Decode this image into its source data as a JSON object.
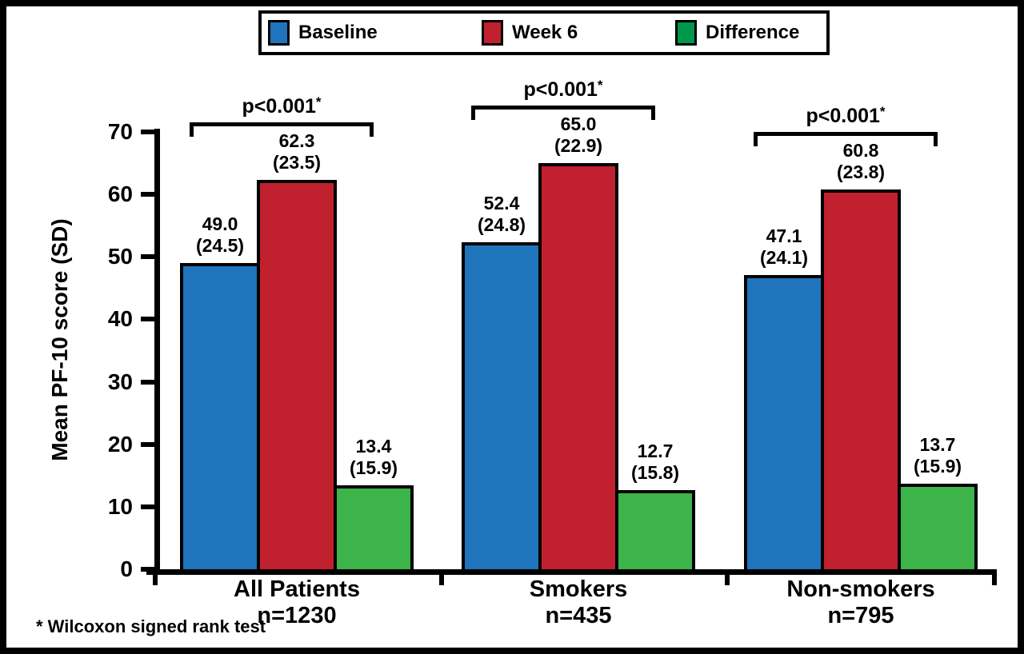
{
  "legend": {
    "items": [
      {
        "label": "Baseline",
        "color": "#1F74BC",
        "icon": "blue-square-swatch"
      },
      {
        "label": "Week 6",
        "color": "#C1202F",
        "icon": "red-square-swatch"
      },
      {
        "label": "Difference",
        "color": "#00984A",
        "icon": "green-square-swatch"
      }
    ]
  },
  "chart_data": {
    "type": "bar",
    "title": "",
    "xlabel": "",
    "ylabel": "Mean PF-10 score (SD)",
    "ylim": [
      0,
      70
    ],
    "yticks": [
      0,
      10,
      20,
      30,
      40,
      50,
      60,
      70
    ],
    "grid": false,
    "legend_position": "top-center",
    "series": [
      {
        "name": "Baseline",
        "color": "#1F74BC"
      },
      {
        "name": "Week 6",
        "color": "#C1202F"
      },
      {
        "name": "Difference",
        "color": "#3CB44A"
      }
    ],
    "groups": [
      {
        "label": "All Patients",
        "n_label": "n=1230",
        "p_label": "p<0.001",
        "p_asterisk": "*",
        "bars": [
          {
            "series": "Baseline",
            "mean": 49.0,
            "mean_label": "49.0",
            "sd_label": "(24.5)"
          },
          {
            "series": "Week 6",
            "mean": 62.3,
            "mean_label": "62.3",
            "sd_label": "(23.5)"
          },
          {
            "series": "Difference",
            "mean": 13.4,
            "mean_label": "13.4",
            "sd_label": "(15.9)"
          }
        ]
      },
      {
        "label": "Smokers",
        "n_label": "n=435",
        "p_label": "p<0.001",
        "p_asterisk": "*",
        "bars": [
          {
            "series": "Baseline",
            "mean": 52.4,
            "mean_label": "52.4",
            "sd_label": "(24.8)"
          },
          {
            "series": "Week 6",
            "mean": 65.0,
            "mean_label": "65.0",
            "sd_label": "(22.9)"
          },
          {
            "series": "Difference",
            "mean": 12.7,
            "mean_label": "12.7",
            "sd_label": "(15.8)"
          }
        ]
      },
      {
        "label": "Non-smokers",
        "n_label": "n=795",
        "p_label": "p<0.001",
        "p_asterisk": "*",
        "bars": [
          {
            "series": "Baseline",
            "mean": 47.1,
            "mean_label": "47.1",
            "sd_label": "(24.1)"
          },
          {
            "series": "Week 6",
            "mean": 60.8,
            "mean_label": "60.8",
            "sd_label": "(23.8)"
          },
          {
            "series": "Difference",
            "mean": 13.7,
            "mean_label": "13.7",
            "sd_label": "(15.9)"
          }
        ]
      }
    ],
    "footnote": "* Wilcoxon signed rank test"
  }
}
